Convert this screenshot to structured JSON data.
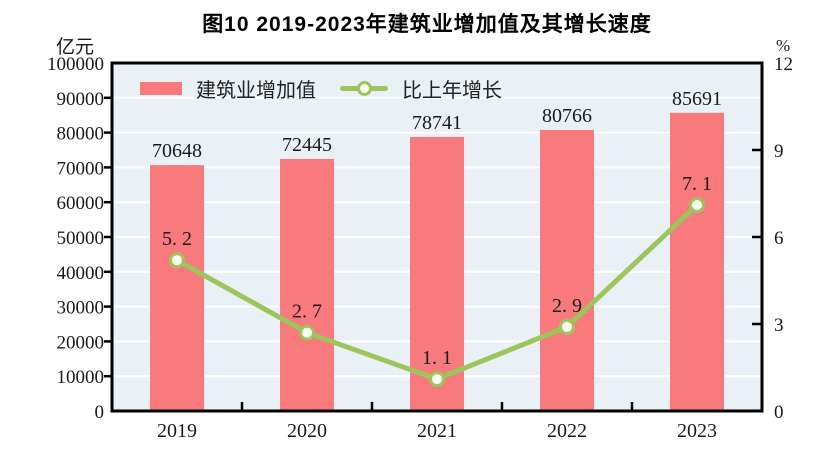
{
  "title": "图10  2019-2023年建筑业增加值及其增长速度",
  "left_axis_unit": "亿元",
  "right_axis_unit": "%",
  "legend": {
    "bar_label": "建筑业增加值",
    "line_label": "比上年增长"
  },
  "chart_data": {
    "type": "bar+line combo",
    "categories": [
      "2019",
      "2020",
      "2021",
      "2022",
      "2023"
    ],
    "series": [
      {
        "name": "建筑业增加值",
        "type": "bar",
        "axis": "left",
        "values": [
          70648,
          72445,
          78741,
          80766,
          85691
        ],
        "value_labels": [
          "70648",
          "72445",
          "78741",
          "80766",
          "85691"
        ],
        "color": "#F87A7C"
      },
      {
        "name": "比上年增长",
        "type": "line",
        "axis": "right",
        "values": [
          5.2,
          2.7,
          1.1,
          2.9,
          7.1
        ],
        "value_labels": [
          "5. 2",
          "2. 7",
          "1. 1",
          "2. 9",
          "7. 1"
        ],
        "color": "#9CC55C",
        "marker": "hollow-circle"
      }
    ],
    "left_axis": {
      "min": 0,
      "max": 100000,
      "step": 10000,
      "tick_labels": [
        "0",
        "10000",
        "20000",
        "30000",
        "40000",
        "50000",
        "60000",
        "70000",
        "80000",
        "90000",
        "100000"
      ]
    },
    "right_axis": {
      "min": 0,
      "max": 12,
      "step": 3,
      "tick_labels": [
        "0",
        "3",
        "6",
        "9",
        "12"
      ]
    },
    "grid": "horizontal white gridlines",
    "plot_background": "#E9F1F6",
    "axis_color": "#000000",
    "text_color": "#1a1a1a",
    "legend_position": "inside top-left"
  }
}
